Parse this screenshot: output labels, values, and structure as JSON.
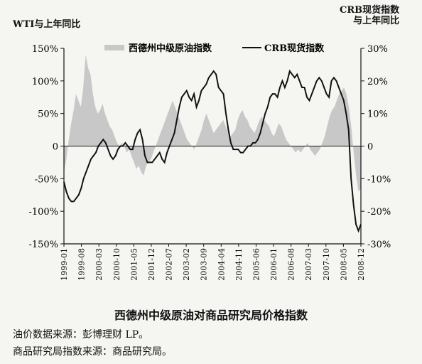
{
  "captions": {
    "title": "西德州中级原油对商品研究局价格指数",
    "source_oil": "油价数据来源：彭博理财 LP。",
    "source_crb": "商品研究局指数来源：商品研究局。"
  },
  "chart_data": {
    "type": "area",
    "title": "西德州中级原油对商品研究局价格指数",
    "ylabel_left": "WTI与上年同比",
    "ylabel_right": [
      "CRB现货指数",
      "与上年同比"
    ],
    "ylim_left": [
      -150,
      150
    ],
    "ylim_right": [
      -30,
      30
    ],
    "yticks_left": [
      "150%",
      "100%",
      "50%",
      "0",
      "-50%",
      "-100%",
      "-150%"
    ],
    "yticks_right": [
      "30%",
      "20%",
      "10%",
      "0",
      "-10%",
      "-20%",
      "-30%"
    ],
    "xticks": [
      "1999-01",
      "1999-08",
      "2000-03",
      "2000-10",
      "2001-05",
      "2001-12",
      "2002-07",
      "2003-02",
      "2003-09",
      "2004-04",
      "2004-11",
      "2005-06",
      "2006-01",
      "2006-08",
      "2007-03",
      "2007-10",
      "2008-05",
      "2008-12"
    ],
    "grid": false,
    "legend_position": "top",
    "series": [
      {
        "name": "西德州中级原油指数",
        "axis": "left",
        "render": "area",
        "color": "#c8c8c8",
        "values": [
          -40,
          -20,
          10,
          35,
          55,
          80,
          70,
          60,
          90,
          140,
          120,
          110,
          80,
          60,
          50,
          55,
          65,
          50,
          40,
          30,
          25,
          15,
          5,
          0,
          5,
          0,
          -10,
          -5,
          -15,
          -25,
          -35,
          -30,
          -40,
          -45,
          -30,
          -25,
          -20,
          -10,
          0,
          10,
          20,
          30,
          40,
          50,
          60,
          70,
          60,
          50,
          40,
          30,
          20,
          10,
          5,
          0,
          -5,
          5,
          15,
          25,
          40,
          50,
          40,
          30,
          20,
          25,
          30,
          35,
          40,
          30,
          20,
          15,
          20,
          25,
          40,
          50,
          55,
          45,
          40,
          30,
          25,
          20,
          30,
          40,
          45,
          40,
          35,
          30,
          20,
          15,
          25,
          35,
          30,
          20,
          10,
          5,
          0,
          -5,
          -10,
          -5,
          -10,
          -5,
          0,
          5,
          -5,
          -10,
          -15,
          -10,
          -5,
          5,
          15,
          30,
          45,
          55,
          60,
          70,
          80,
          85,
          90,
          80,
          60,
          30,
          -10,
          -45,
          -70,
          -65
        ]
      },
      {
        "name": "CRB现货指数",
        "axis": "right",
        "render": "line",
        "color": "#111111",
        "values": [
          -11,
          -14,
          -16,
          -17,
          -17,
          -16,
          -15,
          -13,
          -10,
          -8,
          -6,
          -4,
          -3,
          -2,
          0,
          1,
          2,
          1,
          -1,
          -3,
          -4,
          -3,
          -1,
          0,
          0,
          1,
          0,
          -1,
          -1,
          2,
          4,
          5,
          2,
          -3,
          -5,
          -5,
          -5,
          -4,
          -3,
          -2,
          -4,
          -5,
          -2,
          0,
          2,
          4,
          8,
          12,
          15,
          16,
          17,
          15,
          14,
          16,
          12,
          14,
          17,
          18,
          19,
          21,
          22,
          23,
          22,
          18,
          17,
          16,
          10,
          5,
          1,
          -1,
          -1,
          -1,
          -2,
          -2,
          -1,
          0,
          0,
          1,
          1,
          2,
          4,
          7,
          10,
          12,
          15,
          16,
          16,
          15,
          18,
          20,
          18,
          20,
          23,
          22,
          21,
          22,
          20,
          18,
          18,
          15,
          14,
          16,
          18,
          20,
          21,
          20,
          18,
          16,
          15,
          20,
          21,
          20,
          18,
          16,
          14,
          10,
          5,
          -10,
          -18,
          -24,
          -26,
          -24
        ]
      }
    ]
  }
}
